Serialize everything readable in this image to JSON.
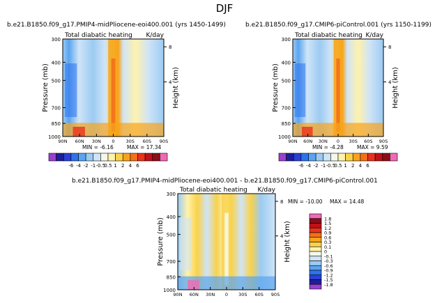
{
  "figure_title": "DJF",
  "chart_data": [
    {
      "type": "heatmap",
      "title": "b.e21.B1850.f09_g17.PMIP4-midPliocene-eoi400.001 (yrs 1450-1499)",
      "left_label": "Total diabatic heating",
      "units": "K/day",
      "ylabel": "Pressure (mb)",
      "ylabel_right": "Height (km)",
      "x_ticks": [
        "90N",
        "60N",
        "30N",
        "0",
        "30S",
        "60S",
        "90S"
      ],
      "y_ticks": [
        "300",
        "400",
        "500",
        "700",
        "850",
        "1000"
      ],
      "height_ticks": [
        "8",
        "4"
      ],
      "ylim": [
        1000,
        300
      ],
      "min_text": "MIN = -6.16",
      "max_text": "MAX = 17.34"
    },
    {
      "type": "heatmap",
      "title": "b.e21.B1850.f09_g17.CMIP6-piControl.001 (yrs 1150-1199)",
      "left_label": "Total diabatic heating",
      "units": "K/day",
      "ylabel": "Pressure (mb)",
      "ylabel_right": "Height (km)",
      "x_ticks": [
        "90N",
        "60N",
        "30N",
        "0",
        "30S",
        "60S",
        "90S"
      ],
      "y_ticks": [
        "300",
        "400",
        "500",
        "700",
        "850",
        "1000"
      ],
      "height_ticks": [
        "8",
        "4"
      ],
      "ylim": [
        1000,
        300
      ],
      "min_text": "MIN = -4.28",
      "max_text": "MAX = 9.59"
    },
    {
      "type": "heatmap",
      "title": "b.e21.B1850.f09_g17.PMIP4-midPliocene-eoi400.001 - b.e21.B1850.f09_g17.CMIP6-piControl.001",
      "left_label": "Total diabatic heating",
      "units": "K/day",
      "ylabel": "Pressure (mb)",
      "ylabel_right": "Height (km)",
      "x_ticks": [
        "90N",
        "60N",
        "30N",
        "0",
        "30S",
        "60S",
        "90S"
      ],
      "y_ticks": [
        "300",
        "400",
        "500",
        "700",
        "850",
        "1000"
      ],
      "height_ticks": [
        "8",
        "4"
      ],
      "ylim": [
        1000,
        300
      ],
      "min_text": "MIN = -10.00",
      "max_text": "MAX = 14.48"
    }
  ],
  "colorbar_top": {
    "labels": [
      "-6",
      "-4",
      "-2",
      "-1",
      "-0.5",
      "0.5",
      "1",
      "2",
      "4",
      "6"
    ],
    "colors": [
      "#9b3fd0",
      "#1e1e9a",
      "#2a3fd8",
      "#2d72ee",
      "#5aa4f0",
      "#9ccbf2",
      "#cfe4f7",
      "#f3f8e8",
      "#fff2ad",
      "#fad24a",
      "#f7a41c",
      "#f36f1a",
      "#e8321b",
      "#c0101a",
      "#8a0d18",
      "#f06ab4"
    ]
  },
  "colorbar_diff": {
    "labels": [
      "1.8",
      "1.5",
      "1.2",
      "0.9",
      "0.6",
      "0.3",
      "0.1",
      "0",
      "-0.1",
      "-0.3",
      "-0.6",
      "-0.9",
      "-1.2",
      "-1.5",
      "-1.8"
    ],
    "colors": [
      "#f06ab4",
      "#8a0d18",
      "#c0101a",
      "#e8321b",
      "#f36f1a",
      "#f7a41c",
      "#fad24a",
      "#fff2ad",
      "#f3f8e8",
      "#cfe4f7",
      "#9ccbf2",
      "#5aa4f0",
      "#2d72ee",
      "#2a3fd8",
      "#1e1e9a",
      "#9b3fd0"
    ]
  }
}
